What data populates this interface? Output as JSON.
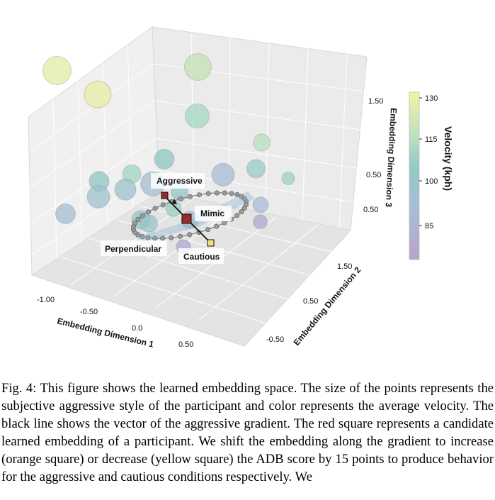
{
  "figure": {
    "caption": "Fig. 4: This figure shows the learned embedding space. The size of the points represents the subjective aggressive style of the participant and color represents the average velocity. The black line shows the vector of the aggressive gradient. The red square represents a candidate learned embedding of a participant. We shift the embedding along the gradient to increase (orange square) or decrease (yellow square) the ADB score by 15 points to produce behavior for the aggressive and cautious conditions respectively. We"
  },
  "chart_data": {
    "type": "scatter3d",
    "xlabel": "Embedding Dimension 1",
    "ylabel": "Embedding Dimension 2",
    "zlabel": "Embedding Dimension 3",
    "x_ticks": [
      "-1.00",
      "-0.50",
      "0.0",
      "0.50"
    ],
    "y_ticks": [
      "-0.50",
      "0.50",
      "1.50"
    ],
    "z_ticks": [
      "0.50",
      "0.50",
      "1.50"
    ],
    "colorbar": {
      "label": "Velocity (kph)",
      "ticks": [
        "130",
        "115",
        "100",
        "85"
      ],
      "range": [
        75,
        130
      ]
    },
    "annotations": {
      "aggressive": "Aggressive",
      "mimic": "Mimic",
      "cautious": "Cautious",
      "perpendicular": "Perpendicular"
    },
    "colors": {
      "high": "#f2ef9c",
      "mid_high": "#a9dcc0",
      "mid": "#8fc7c4",
      "mid_low": "#a7bcd6",
      "low": "#b49cc7",
      "red_square": "#9b2a2a",
      "yellow_square": "#f3e08a"
    },
    "points": [
      {
        "x": -1.05,
        "y": 0.1,
        "z": 1.45,
        "velocity": 127,
        "size": 20
      },
      {
        "x": -0.72,
        "y": 0.2,
        "z": 1.25,
        "velocity": 128,
        "size": 19
      },
      {
        "x": -0.15,
        "y": 0.9,
        "z": 1.55,
        "velocity": 120,
        "size": 19
      },
      {
        "x": -0.05,
        "y": 0.7,
        "z": 1.05,
        "velocity": 112,
        "size": 17
      },
      {
        "x": 0.45,
        "y": 0.9,
        "z": 0.85,
        "velocity": 118,
        "size": 12
      },
      {
        "x": 0.45,
        "y": 0.8,
        "z": 0.55,
        "velocity": 105,
        "size": 13
      },
      {
        "x": 0.3,
        "y": 0.5,
        "z": 0.55,
        "velocity": 88,
        "size": 16
      },
      {
        "x": -0.2,
        "y": 0.4,
        "z": 0.55,
        "velocity": 100,
        "size": 14
      },
      {
        "x": -0.4,
        "y": 0.2,
        "z": 0.35,
        "velocity": 110,
        "size": 13
      },
      {
        "x": -0.6,
        "y": 0.0,
        "z": 0.25,
        "velocity": 100,
        "size": 14
      },
      {
        "x": -0.5,
        "y": -0.2,
        "z": 0.2,
        "velocity": 92,
        "size": 16
      },
      {
        "x": -0.3,
        "y": -0.1,
        "z": 0.35,
        "velocity": 95,
        "size": 15
      },
      {
        "x": -0.15,
        "y": 0.1,
        "z": 0.4,
        "velocity": 90,
        "size": 17
      },
      {
        "x": 0.05,
        "y": 0.2,
        "z": 0.35,
        "velocity": 98,
        "size": 12
      },
      {
        "x": 0.1,
        "y": 0.0,
        "z": 0.25,
        "velocity": 104,
        "size": 11
      },
      {
        "x": -0.1,
        "y": -0.2,
        "z": 0.1,
        "velocity": 100,
        "size": 13
      },
      {
        "x": -0.65,
        "y": -0.5,
        "z": 0.05,
        "velocity": 90,
        "size": 14
      },
      {
        "x": -0.05,
        "y": -0.15,
        "z": 0.05,
        "velocity": 96,
        "size": 12
      },
      {
        "x": 0.2,
        "y": 0.1,
        "z": 0.1,
        "velocity": 90,
        "size": 12
      },
      {
        "x": 0.6,
        "y": 0.6,
        "z": 0.25,
        "velocity": 88,
        "size": 11
      },
      {
        "x": 0.7,
        "y": 0.9,
        "z": 0.5,
        "velocity": 108,
        "size": 9
      },
      {
        "x": 0.65,
        "y": 0.5,
        "z": 0.1,
        "velocity": 80,
        "size": 10
      },
      {
        "x": 0.3,
        "y": -0.2,
        "z": -0.05,
        "velocity": 80,
        "size": 10
      },
      {
        "x": -0.2,
        "y": -0.45,
        "z": -0.2,
        "velocity": 78,
        "size": 10
      }
    ],
    "mimic_square": {
      "x": -0.1,
      "y": 0.15,
      "z": 0.35
    },
    "aggressive_square": {
      "x": -0.3,
      "y": 0.25,
      "z": 0.6
    },
    "cautious_square": {
      "x": 0.08,
      "y": 0.05,
      "z": 0.1
    }
  }
}
